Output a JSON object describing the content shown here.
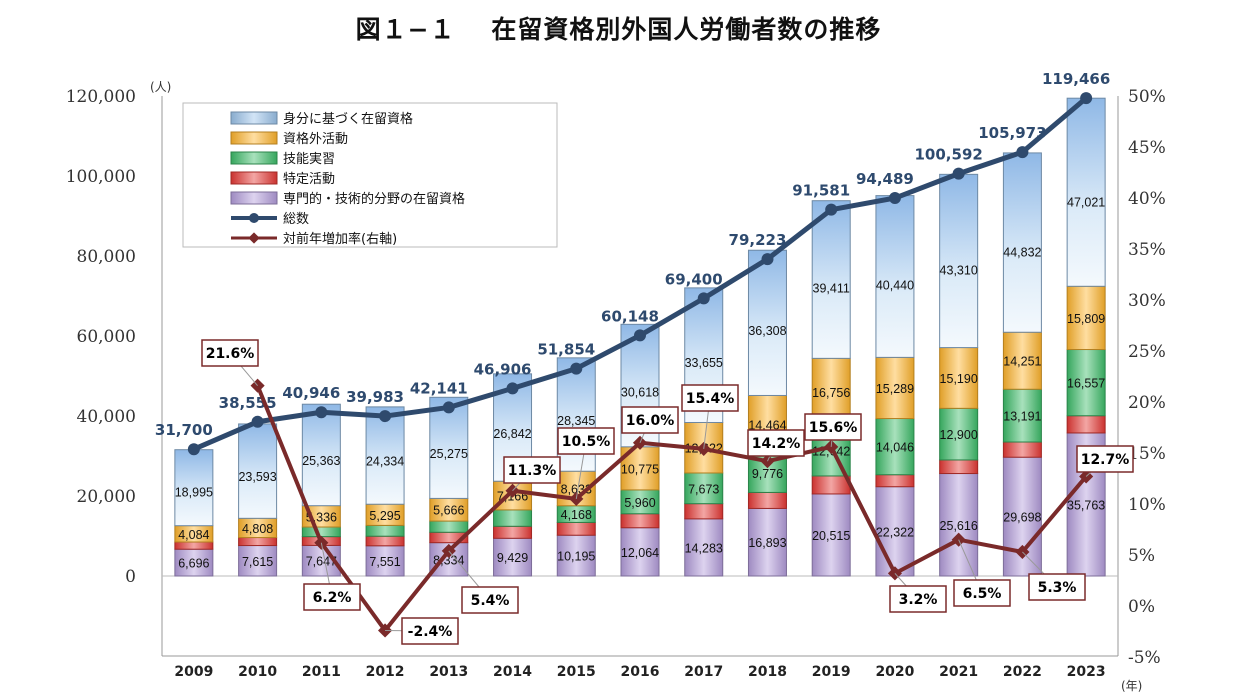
{
  "title": "図１−１　 在留資格別外国人労働者数の推移",
  "chart_data": {
    "type": "bar",
    "stacked": true,
    "categories": [
      "2009",
      "2010",
      "2011",
      "2012",
      "2013",
      "2014",
      "2015",
      "2016",
      "2017",
      "2018",
      "2019",
      "2020",
      "2021",
      "2022",
      "2023"
    ],
    "yunit_left": "(人)",
    "xunit": "(年)",
    "ylim_left": [
      -20000,
      120000
    ],
    "yticks_left": [
      0,
      20000,
      40000,
      60000,
      80000,
      100000,
      120000
    ],
    "ytick_labels_left": [
      "0",
      "20,000",
      "40,000",
      "60,000",
      "80,000",
      "100,000",
      "120,000"
    ],
    "ylim_right": [
      -5,
      50
    ],
    "yticks_right": [
      -5,
      0,
      5,
      10,
      15,
      20,
      25,
      30,
      35,
      40,
      45,
      50
    ],
    "ytick_labels_right": [
      "-5%",
      "0%",
      "5%",
      "10%",
      "15%",
      "20%",
      "25%",
      "30%",
      "35%",
      "40%",
      "45%",
      "50%"
    ],
    "series": [
      {
        "name": "専門的・技術的分野の在留資格",
        "key": "professional",
        "color": "#b39ddb",
        "values": [
          6696,
          7615,
          7647,
          7551,
          8334,
          9429,
          10195,
          12064,
          14283,
          16893,
          20515,
          22322,
          25616,
          29698,
          35763
        ],
        "labels": [
          "6,696",
          "7,615",
          "7,647",
          "7,551",
          "8,334",
          "9,429",
          "10,195",
          "12,064",
          "14,283",
          "16,893",
          "20,515",
          "22,322",
          "25,616",
          "29,698",
          "35,763"
        ]
      },
      {
        "name": "特定活動",
        "key": "designated",
        "color": "#e53935",
        "values": [
          1800,
          2000,
          2200,
          2400,
          2600,
          3000,
          3200,
          3500,
          3800,
          4000,
          4500,
          3000,
          3400,
          3800,
          4300
        ]
      },
      {
        "name": "技能実習",
        "key": "technical_intern",
        "color": "#3dbd6a",
        "values": [
          0,
          0,
          2400,
          2700,
          2800,
          4100,
          4168,
          5960,
          7673,
          9776,
          12642,
          14046,
          12900,
          13191,
          16557
        ],
        "labels": [
          "",
          "",
          "",
          "",
          "",
          "",
          "4,168",
          "5,960",
          "7,673",
          "9,776",
          "12,642",
          "14,046",
          "12,900",
          "13,191",
          "16,557"
        ]
      },
      {
        "name": "資格外活動",
        "key": "permission_activity",
        "color": "#ffb52e",
        "values": [
          4084,
          4808,
          5336,
          5295,
          5666,
          7166,
          8633,
          10775,
          12622,
          14464,
          16756,
          15289,
          15190,
          14251,
          15809
        ],
        "labels": [
          "4,084",
          "4,808",
          "5,336",
          "5,295",
          "5,666",
          "7,166",
          "8,633",
          "10,775",
          "12,622",
          "14,464",
          "16,756",
          "15,289",
          "15,190",
          "14,251",
          "15,809"
        ]
      },
      {
        "name": "身分に基づく在留資格",
        "key": "status_based",
        "color": "#9cc3ea",
        "values": [
          18995,
          23593,
          25363,
          24334,
          25275,
          26842,
          28345,
          30618,
          33655,
          36308,
          39411,
          40440,
          43310,
          44832,
          47021
        ],
        "labels": [
          "18,995",
          "23,593",
          "25,363",
          "24,334",
          "25,275",
          "26,842",
          "28,345",
          "30,618",
          "33,655",
          "36,308",
          "39,411",
          "40,440",
          "43,310",
          "44,832",
          "47,021"
        ]
      }
    ],
    "total": {
      "name": "総数",
      "color": "#2f4a6d",
      "values": [
        31700,
        38555,
        40946,
        39983,
        42141,
        46906,
        51854,
        60148,
        69400,
        79223,
        91581,
        94489,
        100592,
        105973,
        119466
      ],
      "labels": [
        "31,700",
        "38,555",
        "40,946",
        "39,983",
        "42,141",
        "46,906",
        "51,854",
        "60,148",
        "69,400",
        "79,223",
        "91,581",
        "94,489",
        "100,592",
        "105,973",
        "119,466"
      ]
    },
    "growth_rate": {
      "name": "対前年増加率(右軸)",
      "color": "#7a2a2a",
      "values": [
        null,
        21.6,
        6.2,
        -2.4,
        5.4,
        11.3,
        10.5,
        16.0,
        15.4,
        14.2,
        15.6,
        3.2,
        6.5,
        5.3,
        12.7
      ],
      "labels": [
        "",
        "21.6%",
        "6.2%",
        "-2.4%",
        "5.4%",
        "11.3%",
        "10.5%",
        "16.0%",
        "15.4%",
        "14.2%",
        "15.6%",
        "3.2%",
        "6.5%",
        "5.3%",
        "12.7%"
      ]
    },
    "legend_order": [
      "status_based",
      "permission_activity",
      "technical_intern",
      "designated",
      "professional",
      "total",
      "growth_rate"
    ],
    "legend_position": "top-left"
  }
}
